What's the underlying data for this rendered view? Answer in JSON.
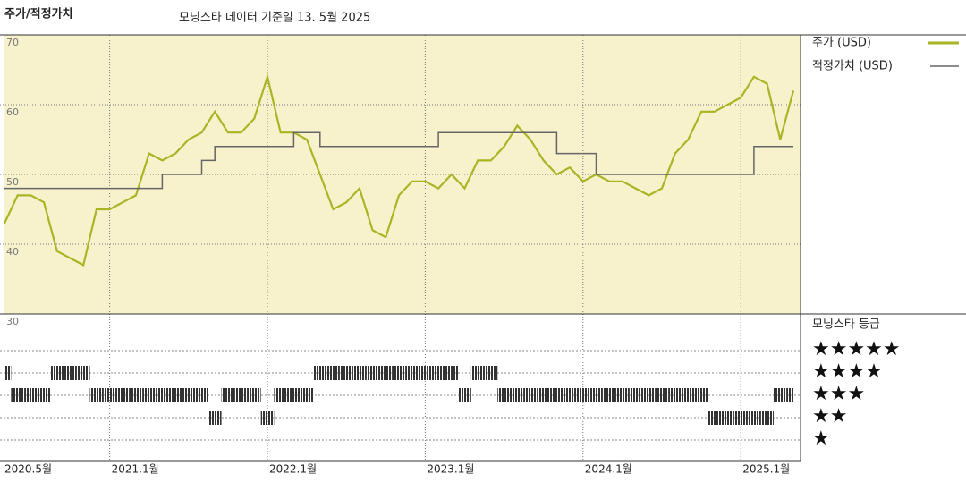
{
  "chart_data": {
    "type": "line",
    "title": "주가/적정가치",
    "subtitle": "모닝스타 데이터 기준일 13. 5월 2025",
    "x": [
      "2020-05",
      "2020-06",
      "2020-07",
      "2020-08",
      "2020-09",
      "2020-10",
      "2020-11",
      "2020-12",
      "2021-01",
      "2021-02",
      "2021-03",
      "2021-04",
      "2021-05",
      "2021-06",
      "2021-07",
      "2021-08",
      "2021-09",
      "2021-10",
      "2021-11",
      "2021-12",
      "2022-01",
      "2022-02",
      "2022-03",
      "2022-04",
      "2022-05",
      "2022-06",
      "2022-07",
      "2022-08",
      "2022-09",
      "2022-10",
      "2022-11",
      "2022-12",
      "2023-01",
      "2023-02",
      "2023-03",
      "2023-04",
      "2023-05",
      "2023-06",
      "2023-07",
      "2023-08",
      "2023-09",
      "2023-10",
      "2023-11",
      "2023-12",
      "2024-01",
      "2024-02",
      "2024-03",
      "2024-04",
      "2024-05",
      "2024-06",
      "2024-07",
      "2024-08",
      "2024-09",
      "2024-10",
      "2024-11",
      "2024-12",
      "2025-01",
      "2025-02",
      "2025-03",
      "2025-04",
      "2025-05"
    ],
    "series": [
      {
        "name": "주가 (USD)",
        "color": "#a9b524",
        "values": [
          43,
          47,
          47,
          46,
          39,
          38,
          37,
          45,
          45,
          46,
          47,
          53,
          52,
          53,
          55,
          56,
          59,
          56,
          56,
          58,
          64,
          56,
          56,
          55,
          50,
          45,
          46,
          48,
          42,
          41,
          47,
          49,
          49,
          48,
          50,
          48,
          52,
          52,
          54,
          57,
          55,
          52,
          50,
          51,
          49,
          50,
          49,
          49,
          48,
          47,
          48,
          53,
          55,
          59,
          59,
          60,
          61,
          64,
          63,
          55,
          62
        ]
      },
      {
        "name": "적정가치 (USD)",
        "color": "#666666",
        "step": true,
        "values": [
          48,
          48,
          48,
          48,
          48,
          48,
          48,
          48,
          48,
          48,
          48,
          48,
          50,
          50,
          50,
          52,
          54,
          54,
          54,
          54,
          54,
          54,
          56,
          56,
          54,
          54,
          54,
          54,
          54,
          54,
          54,
          54,
          54,
          56,
          56,
          56,
          56,
          56,
          56,
          56,
          56,
          56,
          53,
          53,
          53,
          50,
          50,
          50,
          50,
          50,
          50,
          50,
          50,
          50,
          50,
          50,
          50,
          54,
          54,
          54,
          54
        ]
      }
    ],
    "ylim": [
      30,
      70
    ],
    "yticks": [
      30,
      40,
      50,
      60,
      70
    ],
    "xticks": [
      {
        "value": "2020-05",
        "label": "2020.5월"
      },
      {
        "value": "2021-01",
        "label": "2021.1월"
      },
      {
        "value": "2022-01",
        "label": "2022.1월"
      },
      {
        "value": "2023-01",
        "label": "2023.1월"
      },
      {
        "value": "2024-01",
        "label": "2024.1월"
      },
      {
        "value": "2025-01",
        "label": "2025.1월"
      }
    ],
    "rating_title": "모닝스타 등급",
    "rating_levels": [
      5,
      4,
      3,
      2,
      1
    ],
    "rating_legend": [
      "★★★★★",
      "★★★★",
      "★★★",
      "★★",
      "★"
    ],
    "ratings": [
      4,
      3,
      3,
      3,
      4,
      4,
      4,
      3,
      3,
      3,
      3,
      3,
      3,
      3,
      3,
      3,
      2,
      3,
      3,
      3,
      2,
      3,
      3,
      3,
      4,
      4,
      4,
      4,
      4,
      4,
      4,
      4,
      4,
      4,
      4,
      3,
      4,
      4,
      3,
      3,
      3,
      3,
      3,
      3,
      3,
      3,
      3,
      3,
      3,
      3,
      3,
      3,
      3,
      3,
      2,
      2,
      2,
      2,
      2,
      3,
      3
    ],
    "rating_color": "#333333",
    "background": "#f7f2cc"
  }
}
